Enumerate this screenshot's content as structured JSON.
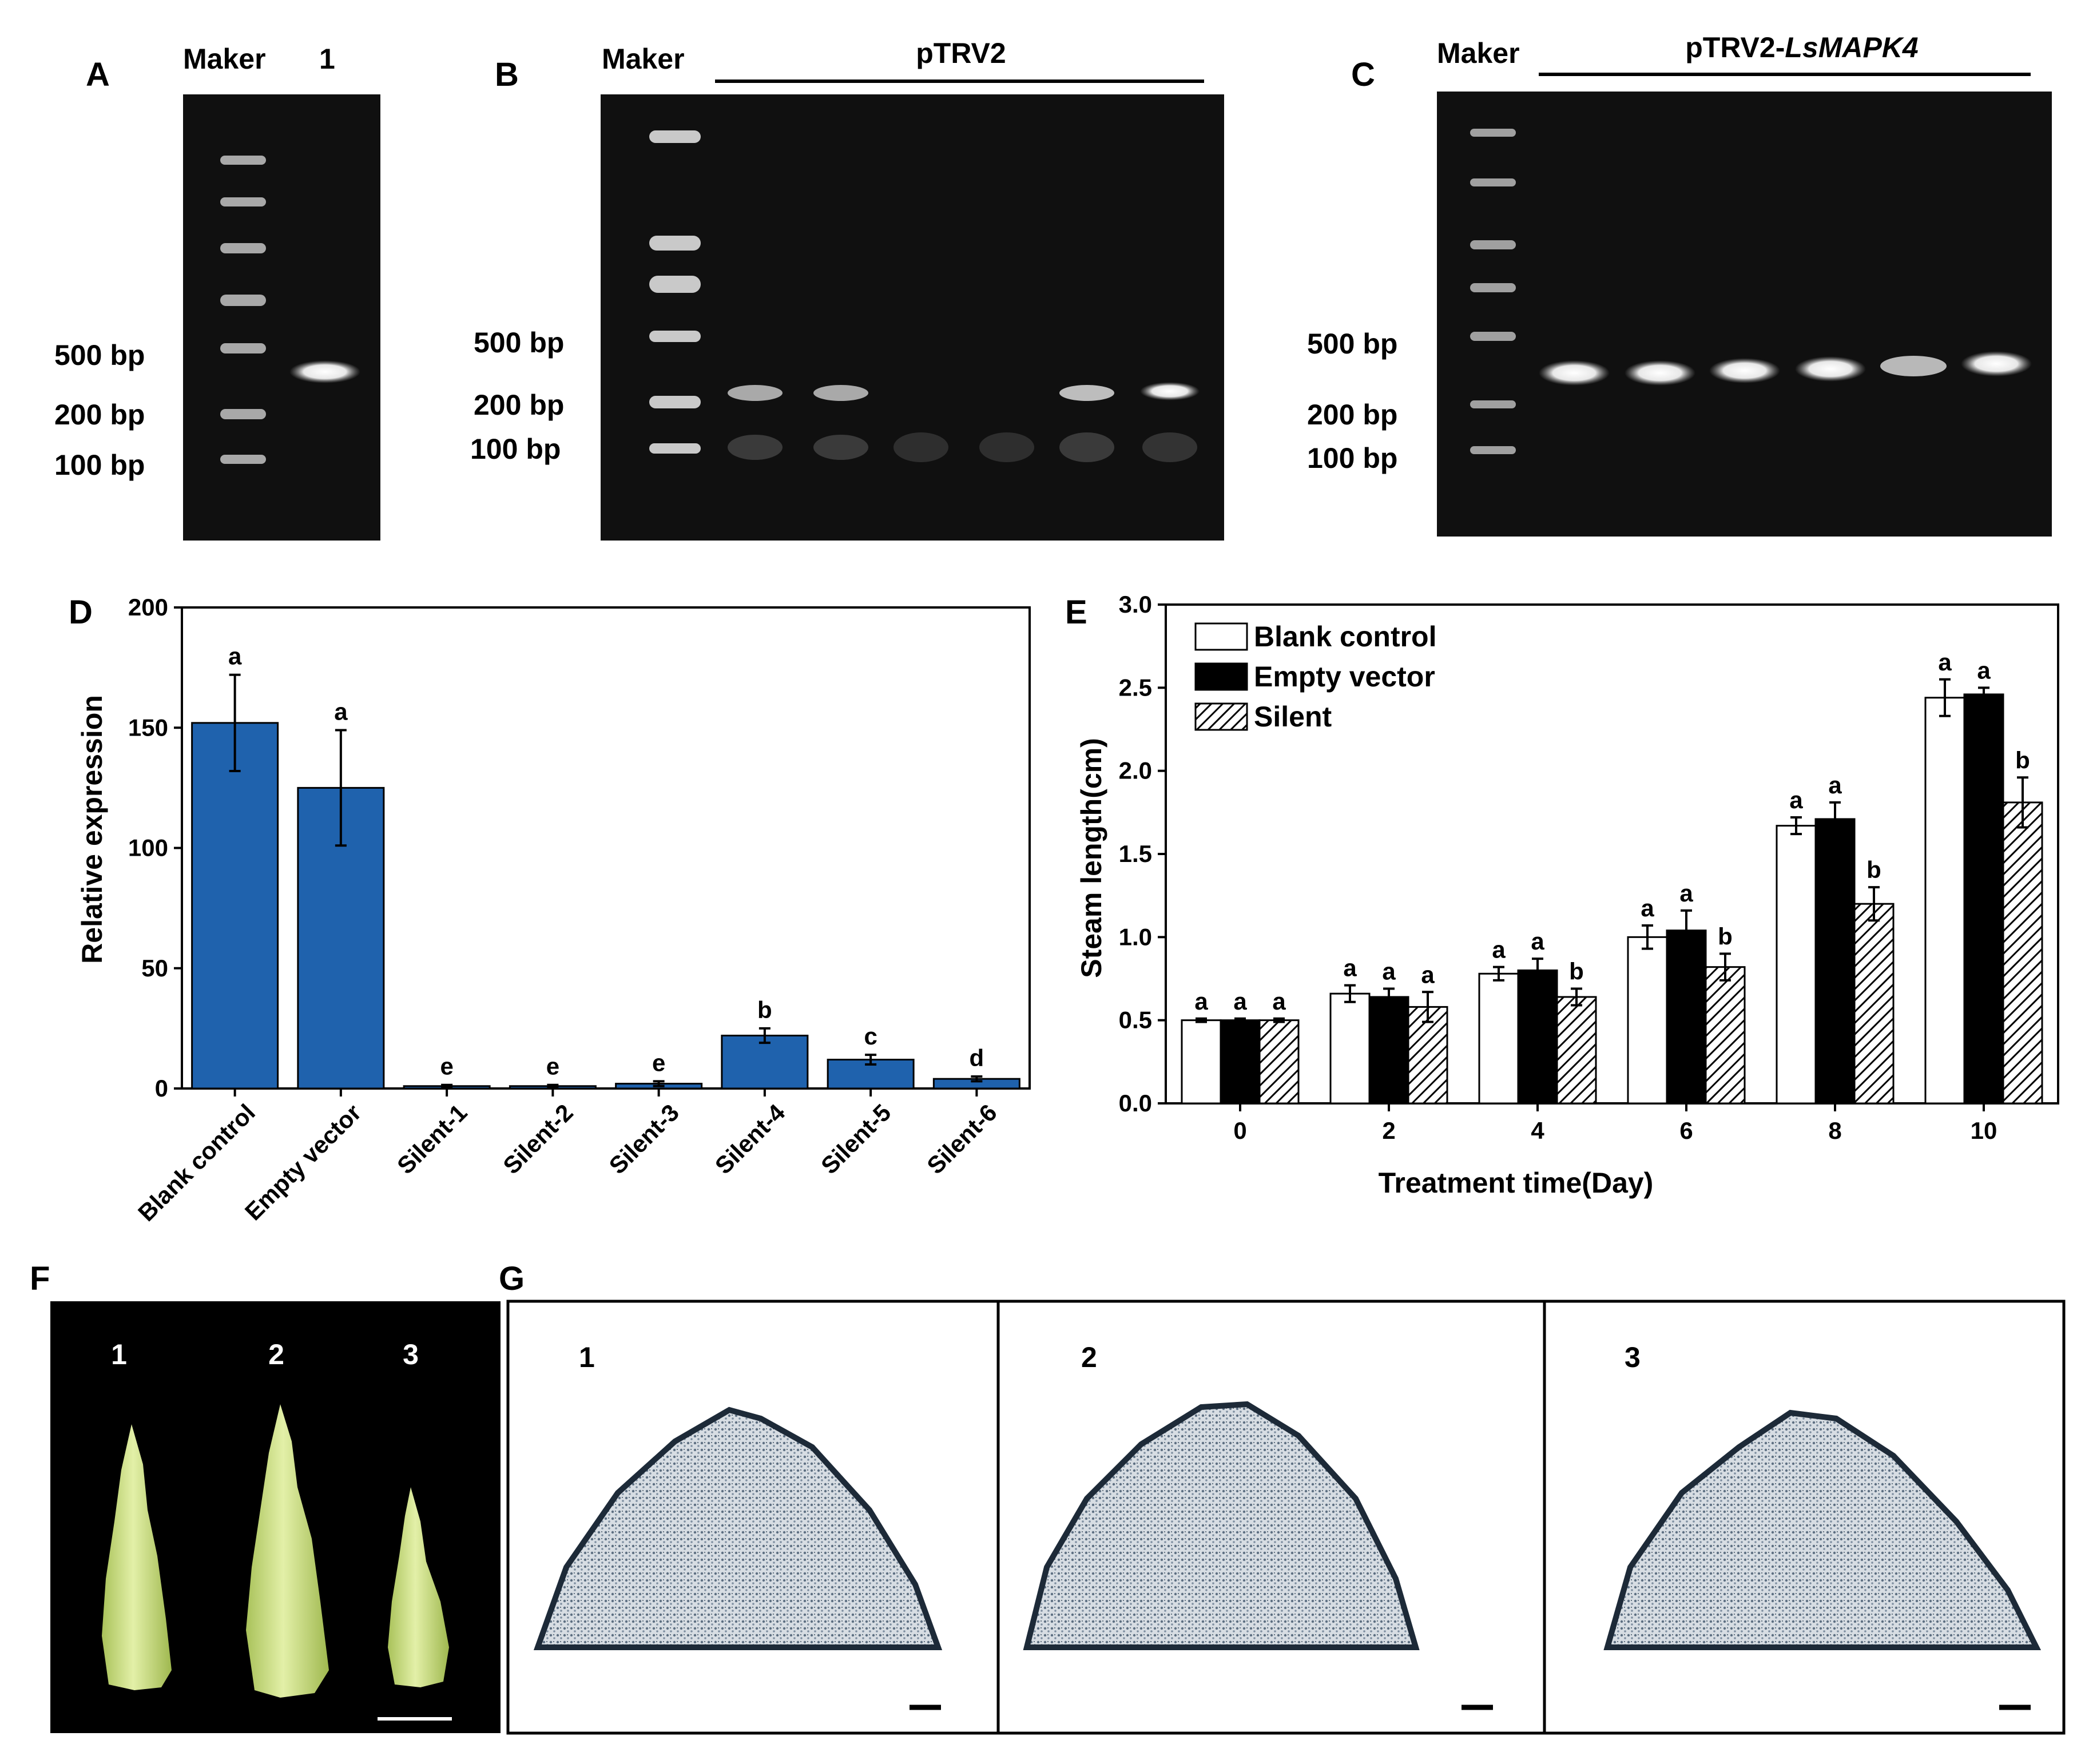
{
  "panels": {
    "A": {
      "letter": "A",
      "marker_label": "Maker",
      "lane_label": "1",
      "sizes": [
        "500 bp",
        "200 bp",
        "100 bp"
      ]
    },
    "B": {
      "letter": "B",
      "marker_label": "Maker",
      "group_label": "pTRV2",
      "sizes": [
        "500 bp",
        "200 bp",
        "100 bp"
      ]
    },
    "C": {
      "letter": "C",
      "marker_label": "Maker",
      "group_label_prefix": "pTRV2-",
      "group_label_gene": "LsMAPK4",
      "sizes": [
        "500 bp",
        "200 bp",
        "100 bp"
      ]
    },
    "D": {
      "letter": "D"
    },
    "E": {
      "letter": "E"
    },
    "F": {
      "letter": "F",
      "labels": [
        "1",
        "2",
        "3"
      ]
    },
    "G": {
      "letter": "G",
      "labels": [
        "1",
        "2",
        "3"
      ]
    }
  },
  "chart_data": [
    {
      "id": "D",
      "type": "bar",
      "ylabel": "Relative expression",
      "ylim": [
        0,
        200
      ],
      "yticks": [
        "0",
        "50",
        "100",
        "150",
        "200"
      ],
      "categories": [
        "Blank control",
        "Empty vector",
        "Silent-1",
        "Silent-2",
        "Silent-3",
        "Silent-4",
        "Silent-5",
        "Silent-6"
      ],
      "values": [
        152,
        125,
        1,
        1,
        2,
        22,
        12,
        4
      ],
      "errors": [
        20,
        24,
        0.5,
        0.5,
        1,
        3,
        2,
        1
      ],
      "significance": [
        "a",
        "a",
        "e",
        "e",
        "e",
        "b",
        "c",
        "d"
      ],
      "color": "#1f62ad"
    },
    {
      "id": "E",
      "type": "bar",
      "xlabel": "Treatment time(Day)",
      "ylabel": "Steam length(cm)",
      "ylim": [
        0,
        3.0
      ],
      "yticks": [
        "0.0",
        "0.5",
        "1.0",
        "1.5",
        "2.0",
        "2.5",
        "3.0"
      ],
      "categories": [
        "0",
        "2",
        "4",
        "6",
        "8",
        "10"
      ],
      "legend_position": "top-left",
      "series": [
        {
          "name": "Blank control",
          "fill": "white",
          "values": [
            0.5,
            0.66,
            0.78,
            1.0,
            1.67,
            2.44
          ],
          "errors": [
            0.01,
            0.05,
            0.04,
            0.07,
            0.05,
            0.11
          ],
          "significance": [
            "a",
            "a",
            "a",
            "a",
            "a",
            "a"
          ]
        },
        {
          "name": "Empty vector",
          "fill": "black",
          "values": [
            0.5,
            0.64,
            0.8,
            1.04,
            1.71,
            2.46
          ],
          "errors": [
            0.01,
            0.05,
            0.07,
            0.12,
            0.1,
            0.04
          ],
          "significance": [
            "a",
            "a",
            "a",
            "a",
            "a",
            "a"
          ]
        },
        {
          "name": "Silent",
          "fill": "hatch",
          "values": [
            0.5,
            0.58,
            0.64,
            0.82,
            1.2,
            1.81
          ],
          "errors": [
            0.01,
            0.09,
            0.05,
            0.08,
            0.1,
            0.15
          ],
          "significance": [
            "a",
            "a",
            "b",
            "b",
            "b",
            "b"
          ]
        }
      ]
    }
  ]
}
